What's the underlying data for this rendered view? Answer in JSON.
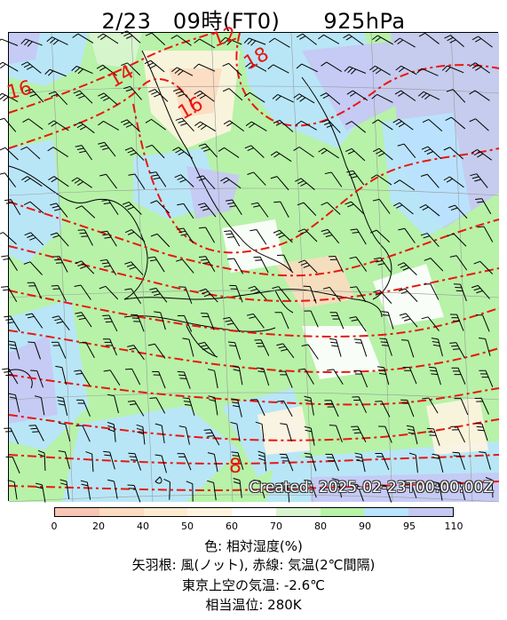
{
  "header": {
    "title": "2/23　09時(FT0)　　925hPa"
  },
  "map": {
    "created_label": "Created: 2025-02-23T00:00:00Z",
    "isotherm_labels": [
      "16",
      "14",
      "12",
      "16",
      "18",
      "8"
    ],
    "colors": {
      "rh_0_20": "#f8c6b4",
      "rh_20_40": "#fbdcc0",
      "rh_40_50": "#fdebd0",
      "rh_50_60": "#fff4e0",
      "rh_60_70": "#ffffff",
      "rh_70_80": "#d9f5d0",
      "rh_80_90": "#b7f2a8",
      "rh_90_95": "#b8e4ff",
      "rh_95_110": "#c6c8f4",
      "isotherm": "#e8170f",
      "coastline": "#000000",
      "wind_barb": "#000000"
    }
  },
  "colorbar": {
    "ticks": [
      "0",
      "20",
      "40",
      "50",
      "60",
      "70",
      "80",
      "90",
      "95",
      "110"
    ]
  },
  "footer": {
    "line1": "色: 相対湿度(%)",
    "line2": "矢羽根: 風(ノット),  赤線: 気温(2℃間隔)",
    "line3": "東京上空の気温: -2.6℃",
    "line4": "相当温位: 280K"
  }
}
